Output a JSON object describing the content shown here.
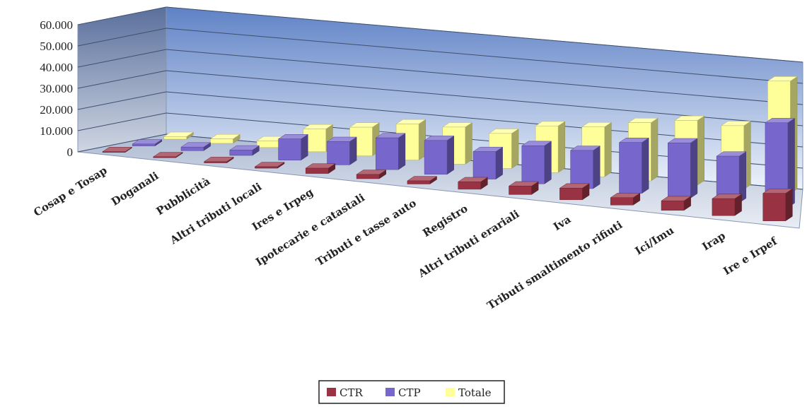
{
  "chart_data": {
    "type": "bar",
    "categories": [
      "Cosap e Tosap",
      "Doganali",
      "Pubblicità",
      "Altri tributi locali",
      "Ires e Irpeg",
      "Ipotecarie e catastali",
      "Tributi e tasse auto",
      "Registro",
      "Altri tributi erariali",
      "Iva",
      "Tributi smaltimento rifiuti",
      "Ici/Imu",
      "Irap",
      "Ire e Irpef"
    ],
    "series": [
      {
        "name": "CTR",
        "color": "#993344",
        "values": [
          300,
          400,
          600,
          700,
          2500,
          2000,
          1500,
          3500,
          4000,
          5500,
          3500,
          4500,
          8000,
          13000
        ]
      },
      {
        "name": "CTP",
        "color": "#7766CC",
        "values": [
          900,
          1700,
          2500,
          10000,
          11000,
          15000,
          16000,
          13000,
          18000,
          18000,
          24000,
          26000,
          22000,
          40000
        ]
      },
      {
        "name": "Totale",
        "color": "#FFFF99",
        "values": [
          1200,
          2100,
          3100,
          10700,
          13500,
          17000,
          17500,
          16500,
          22000,
          23500,
          27500,
          30500,
          30000,
          53000
        ]
      }
    ],
    "yticks": [
      "0",
      "10.000",
      "20.000",
      "30.000",
      "40.000",
      "50.000",
      "60.000"
    ],
    "ylim": [
      0,
      60000
    ],
    "chart_style": "3d-clustered-bar",
    "grid": true,
    "legend": {
      "position": "bottom",
      "entries": [
        "CTR",
        "CTP",
        "Totale"
      ]
    },
    "title": "",
    "xlabel": "",
    "ylabel": ""
  }
}
